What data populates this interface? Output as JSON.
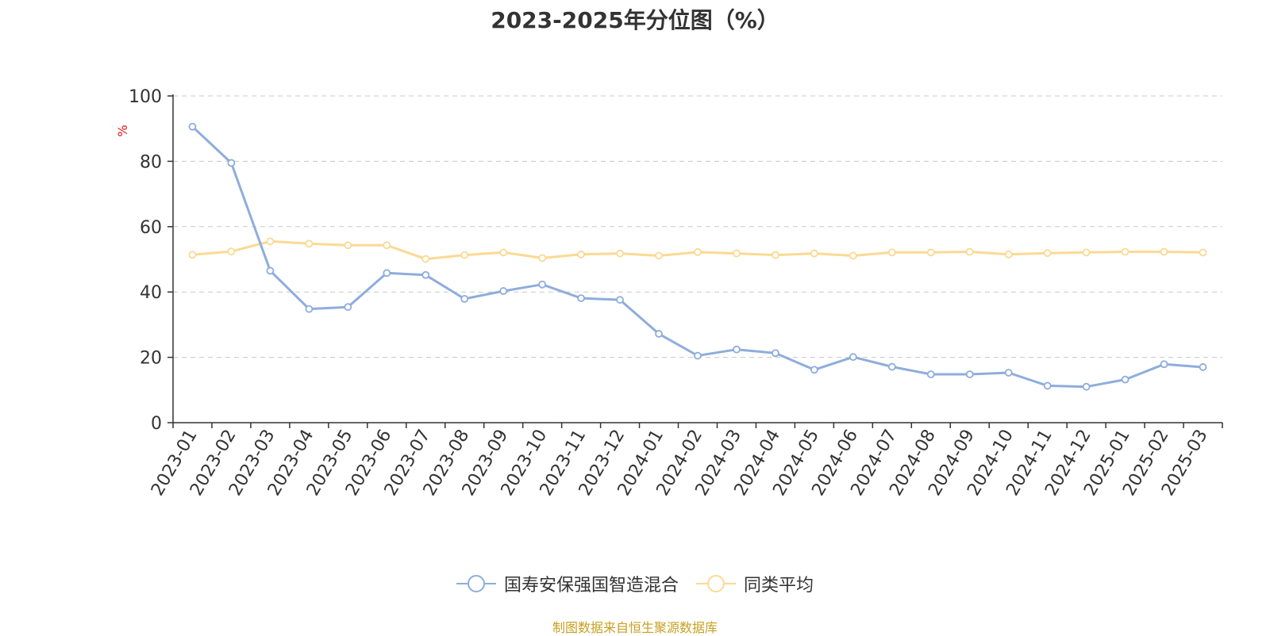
{
  "title": "2023-2025年分位图（%）",
  "source_note": "制图数据来自恒生聚源数据库",
  "colors": {
    "series_1": "#8eaddc",
    "series_2": "#fcd993",
    "unit": "#e01818",
    "source": "#c8a020"
  },
  "chart_data": {
    "type": "line",
    "title": "2023-2025年分位图（%）",
    "ylabel": "%",
    "xlabel": "",
    "ylim": [
      0,
      100
    ],
    "yticks": [
      0,
      20,
      40,
      60,
      80,
      100
    ],
    "grid": true,
    "legend_position": "bottom",
    "categories": [
      "2023-01",
      "2023-02",
      "2023-03",
      "2023-04",
      "2023-05",
      "2023-06",
      "2023-07",
      "2023-08",
      "2023-09",
      "2023-10",
      "2023-11",
      "2023-12",
      "2024-01",
      "2024-02",
      "2024-03",
      "2024-04",
      "2024-05",
      "2024-06",
      "2024-07",
      "2024-08",
      "2024-09",
      "2024-10",
      "2024-11",
      "2024-12",
      "2025-01",
      "2025-02",
      "2025-03"
    ],
    "series": [
      {
        "name": "国寿安保强国智造混合",
        "values": [
          90.6,
          79.5,
          46.5,
          34.8,
          35.4,
          45.8,
          45.2,
          37.9,
          40.3,
          42.3,
          38.1,
          37.6,
          27.2,
          20.5,
          22.4,
          21.3,
          16.2,
          20.1,
          17.1,
          14.8,
          14.8,
          15.3,
          11.3,
          11.0,
          13.2,
          17.9,
          17.0
        ]
      },
      {
        "name": "同类平均",
        "values": [
          51.4,
          52.4,
          55.5,
          54.8,
          54.3,
          54.3,
          50.1,
          51.3,
          52.1,
          50.4,
          51.5,
          51.8,
          51.1,
          52.2,
          51.8,
          51.3,
          51.8,
          51.1,
          52.1,
          52.1,
          52.3,
          51.5,
          51.9,
          52.1,
          52.3,
          52.3,
          52.1
        ]
      }
    ]
  }
}
